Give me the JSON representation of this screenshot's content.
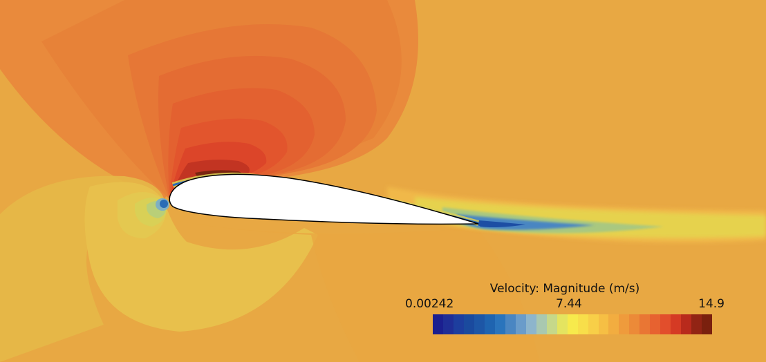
{
  "legend": {
    "title": "Velocity: Magnitude (m/s)",
    "min_label": "0.00242",
    "mid_label": "7.44",
    "max_label": "14.9",
    "min_value": 0.00242,
    "max_value": 14.9
  },
  "colormap": [
    "#1b1f8f",
    "#1f2e96",
    "#1d3e9e",
    "#1a4a9e",
    "#1d56a6",
    "#1f64b0",
    "#2a74bc",
    "#4a86c2",
    "#6a9cca",
    "#8db5cc",
    "#a9c8b0",
    "#c6d88a",
    "#e4e460",
    "#f7ea4c",
    "#f8de4a",
    "#f8cf48",
    "#f6bf44",
    "#f2ad40",
    "#ef9b3c",
    "#ec8a38",
    "#e97634",
    "#e76230",
    "#e24e2c",
    "#d53a24",
    "#b82a1c",
    "#922414",
    "#7a200e"
  ],
  "colors": {
    "freestream": "#e8a843",
    "high_velocity": "#b82a1c",
    "stagnation": "#1f64b0",
    "airfoil_fill": "#ffffff",
    "airfoil_outline": "#000000"
  }
}
